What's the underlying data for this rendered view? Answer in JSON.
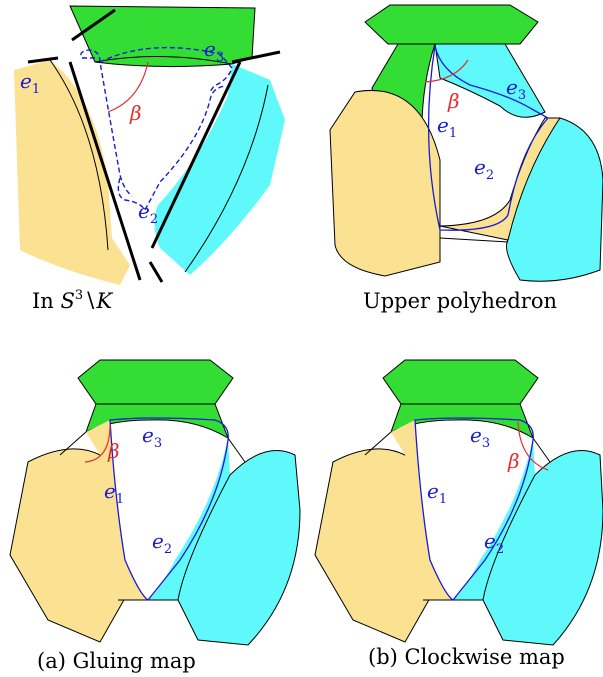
{
  "colors": {
    "green": "#33dd33",
    "yellow": "#fbe292",
    "cyan": "#5ff9fb",
    "edge_blue": "#1a1ad6",
    "beta_red": "#e23030",
    "outline": "#000000"
  },
  "labels": {
    "e": "e",
    "beta": "β",
    "sub1": "1",
    "sub2": "2",
    "sub3": "3"
  },
  "panels": {
    "tl": {
      "cap_prefix": "In ",
      "cap_S": "S",
      "cap_sup": "3",
      "cap_K": "K"
    },
    "tr": {
      "caption": "Upper polyhedron"
    },
    "bl": {
      "caption": "(a) Gluing map"
    },
    "br": {
      "caption": "(b) Clockwise map"
    }
  }
}
